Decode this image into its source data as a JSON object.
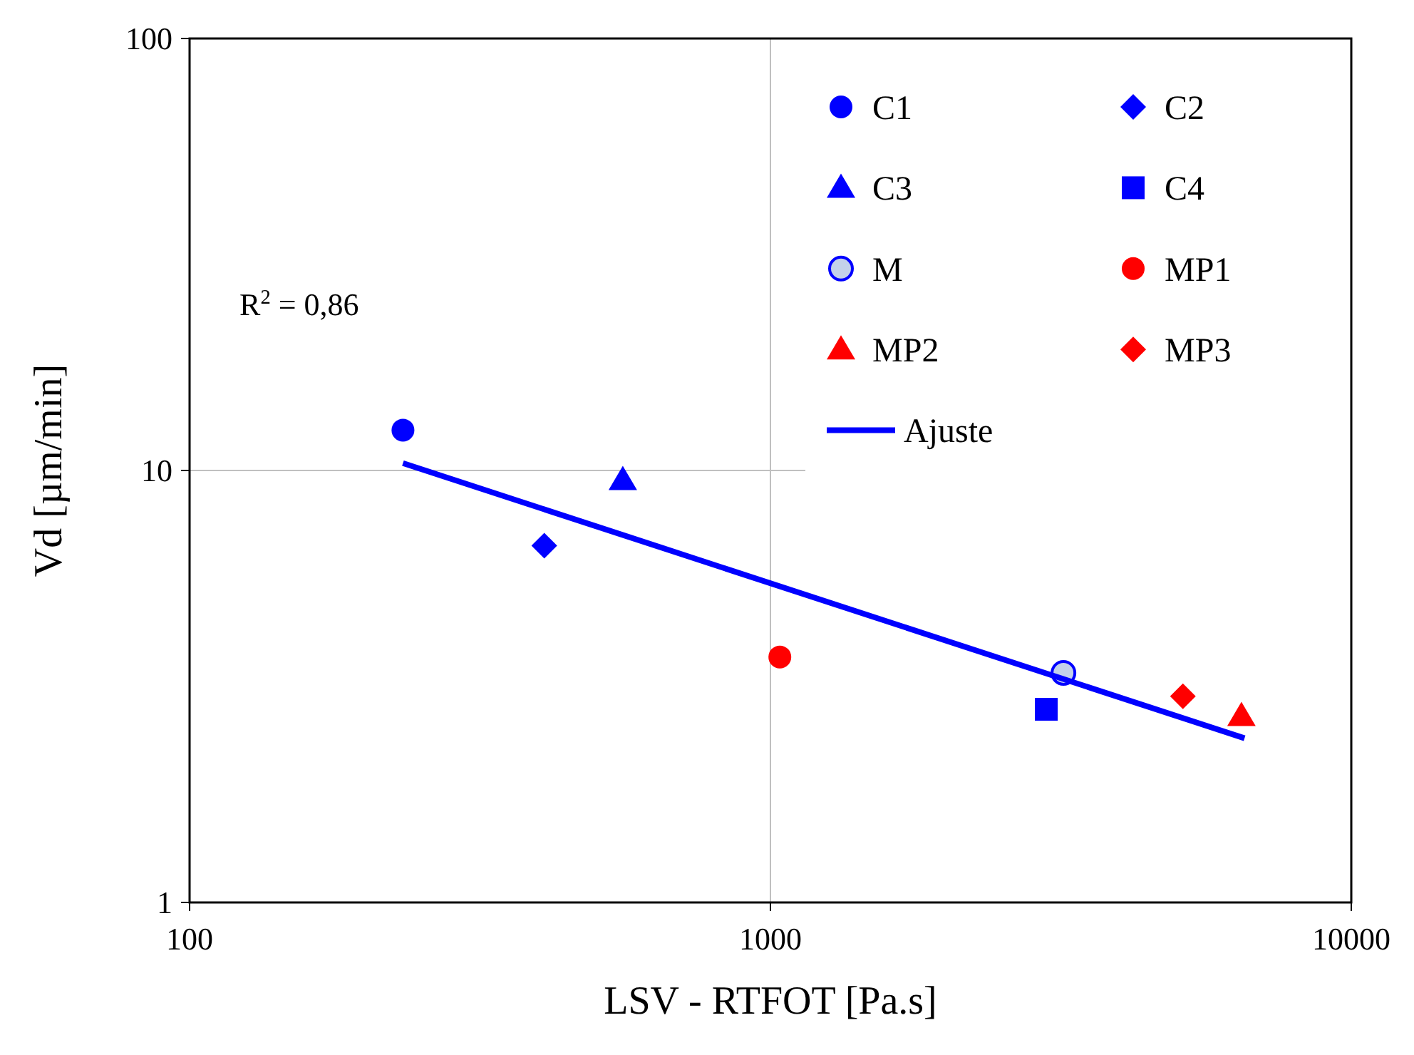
{
  "chart_data": {
    "type": "scatter",
    "xlabel": "LSV - RTFOT [Pa.s]",
    "ylabel": "Vd [µm/min]",
    "log": "xy",
    "xlim": [
      100,
      10000
    ],
    "ylim": [
      1,
      100
    ],
    "xticks": [
      100,
      1000,
      10000
    ],
    "yticks": [
      1,
      10,
      100
    ],
    "grid": true,
    "legend": "top right",
    "annotations": [
      "R$^{2}$ = 0,86"
    ],
    "series": [
      {
        "name": "C1",
        "color": "#0000ff",
        "marker": "circle",
        "x": [
          233
        ],
        "values": [
          12.4
        ]
      },
      {
        "name": "C2",
        "color": "#0000ff",
        "marker": "diamond",
        "x": [
          408
        ],
        "values": [
          6.7
        ]
      },
      {
        "name": "C3",
        "color": "#0000ff",
        "marker": "triangle",
        "x": [
          557
        ],
        "values": [
          9.5
        ]
      },
      {
        "name": "C4",
        "color": "#0000ff",
        "marker": "square",
        "x": [
          2985
        ],
        "values": [
          2.8
        ]
      },
      {
        "name": "M",
        "color": "#c3d1ea",
        "marker": "circle",
        "x": [
          3195
        ],
        "values": [
          3.4
        ]
      },
      {
        "name": "MP1",
        "color": "#ff0000",
        "marker": "circle",
        "x": [
          1038
        ],
        "values": [
          3.7
        ]
      },
      {
        "name": "MP2",
        "color": "#ff0000",
        "marker": "triangle",
        "x": [
          6470
        ],
        "values": [
          2.7
        ]
      },
      {
        "name": "MP3",
        "color": "#ff0000",
        "marker": "diamond",
        "x": [
          5130
        ],
        "values": [
          3.0
        ]
      },
      {
        "name": "Ajuste",
        "type": "line",
        "color": "#0000ff",
        "x": [
          233,
          6550
        ],
        "values": [
          10.4,
          2.4
        ]
      }
    ]
  }
}
